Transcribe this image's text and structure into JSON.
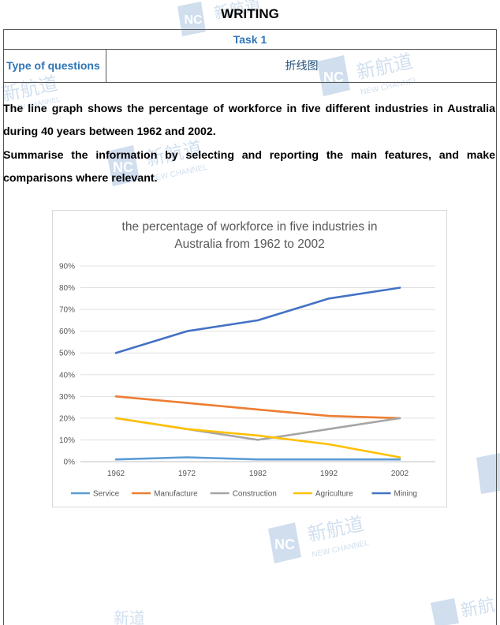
{
  "header": {
    "title": "WRITING"
  },
  "task_row": {
    "label": "Task 1"
  },
  "type_row": {
    "label": "Type of questions",
    "value": "折线图"
  },
  "prompt": {
    "paragraph1": "The line graph shows the percentage of workforce in five different industries in Australia during 40 years between 1962 and 2002.",
    "paragraph2": "Summarise the information by selecting and reporting the main features, and make comparisons where relevant."
  },
  "watermark": {
    "cn": "新航道",
    "en": "NEW CHANNEL",
    "badge": "NC"
  },
  "chart_data": {
    "type": "line",
    "title_line1": "the percentage of workforce in five industries in",
    "title_line2": "Australia from 1962 to 2002",
    "xlabel": "",
    "ylabel": "",
    "x": [
      "1962",
      "1972",
      "1982",
      "1992",
      "2002"
    ],
    "ylim": [
      0,
      90
    ],
    "yticks": [
      "0%",
      "10%",
      "20%",
      "30%",
      "40%",
      "50%",
      "60%",
      "70%",
      "80%",
      "90%"
    ],
    "grid": true,
    "legend": "bottom",
    "series": [
      {
        "name": "Service",
        "color": "#5b9bd5",
        "values": [
          1,
          2,
          1,
          1,
          1
        ]
      },
      {
        "name": "Manufacture",
        "color": "#ed7d31",
        "values": [
          30,
          27,
          24,
          21,
          20
        ]
      },
      {
        "name": "Construction",
        "color": "#a5a5a5",
        "values": [
          20,
          15,
          10,
          15,
          20
        ]
      },
      {
        "name": "Agriculture",
        "color": "#ffc000",
        "values": [
          20,
          15,
          12,
          8,
          2
        ]
      },
      {
        "name": "Mining",
        "color": "#4472c4",
        "values": [
          50,
          60,
          65,
          75,
          80
        ]
      }
    ]
  }
}
